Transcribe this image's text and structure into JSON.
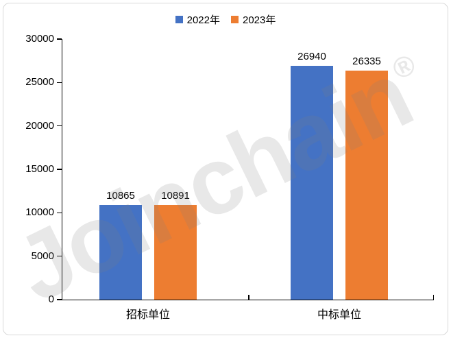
{
  "watermark": {
    "text": "Joinchain",
    "registered": "®"
  },
  "legend": {
    "items": [
      {
        "label": "2022年",
        "color": "#4472C4"
      },
      {
        "label": "2023年",
        "color": "#ED7D31"
      }
    ]
  },
  "chart_data": {
    "type": "bar",
    "title": "",
    "xlabel": "",
    "ylabel": "",
    "categories": [
      "招标单位",
      "中标单位"
    ],
    "series": [
      {
        "name": "2022年",
        "color": "#4472C4",
        "values": [
          10865,
          26940
        ]
      },
      {
        "name": "2023年",
        "color": "#ED7D31",
        "values": [
          10891,
          26335
        ]
      }
    ],
    "value_labels": [
      [
        "10865",
        "26940"
      ],
      [
        "10891",
        "26335"
      ]
    ],
    "ylim": [
      0,
      30000
    ],
    "ytick_step": 5000,
    "yticks": [
      "0",
      "5000",
      "10000",
      "15000",
      "20000",
      "25000",
      "30000"
    ],
    "grid": false,
    "legend_position": "top-center"
  },
  "colors": {
    "axis": "#000000",
    "text": "#000000",
    "border": "#D9D9D9",
    "background": "#FFFFFF",
    "series1": "#4472C4",
    "series2": "#ED7D31"
  }
}
